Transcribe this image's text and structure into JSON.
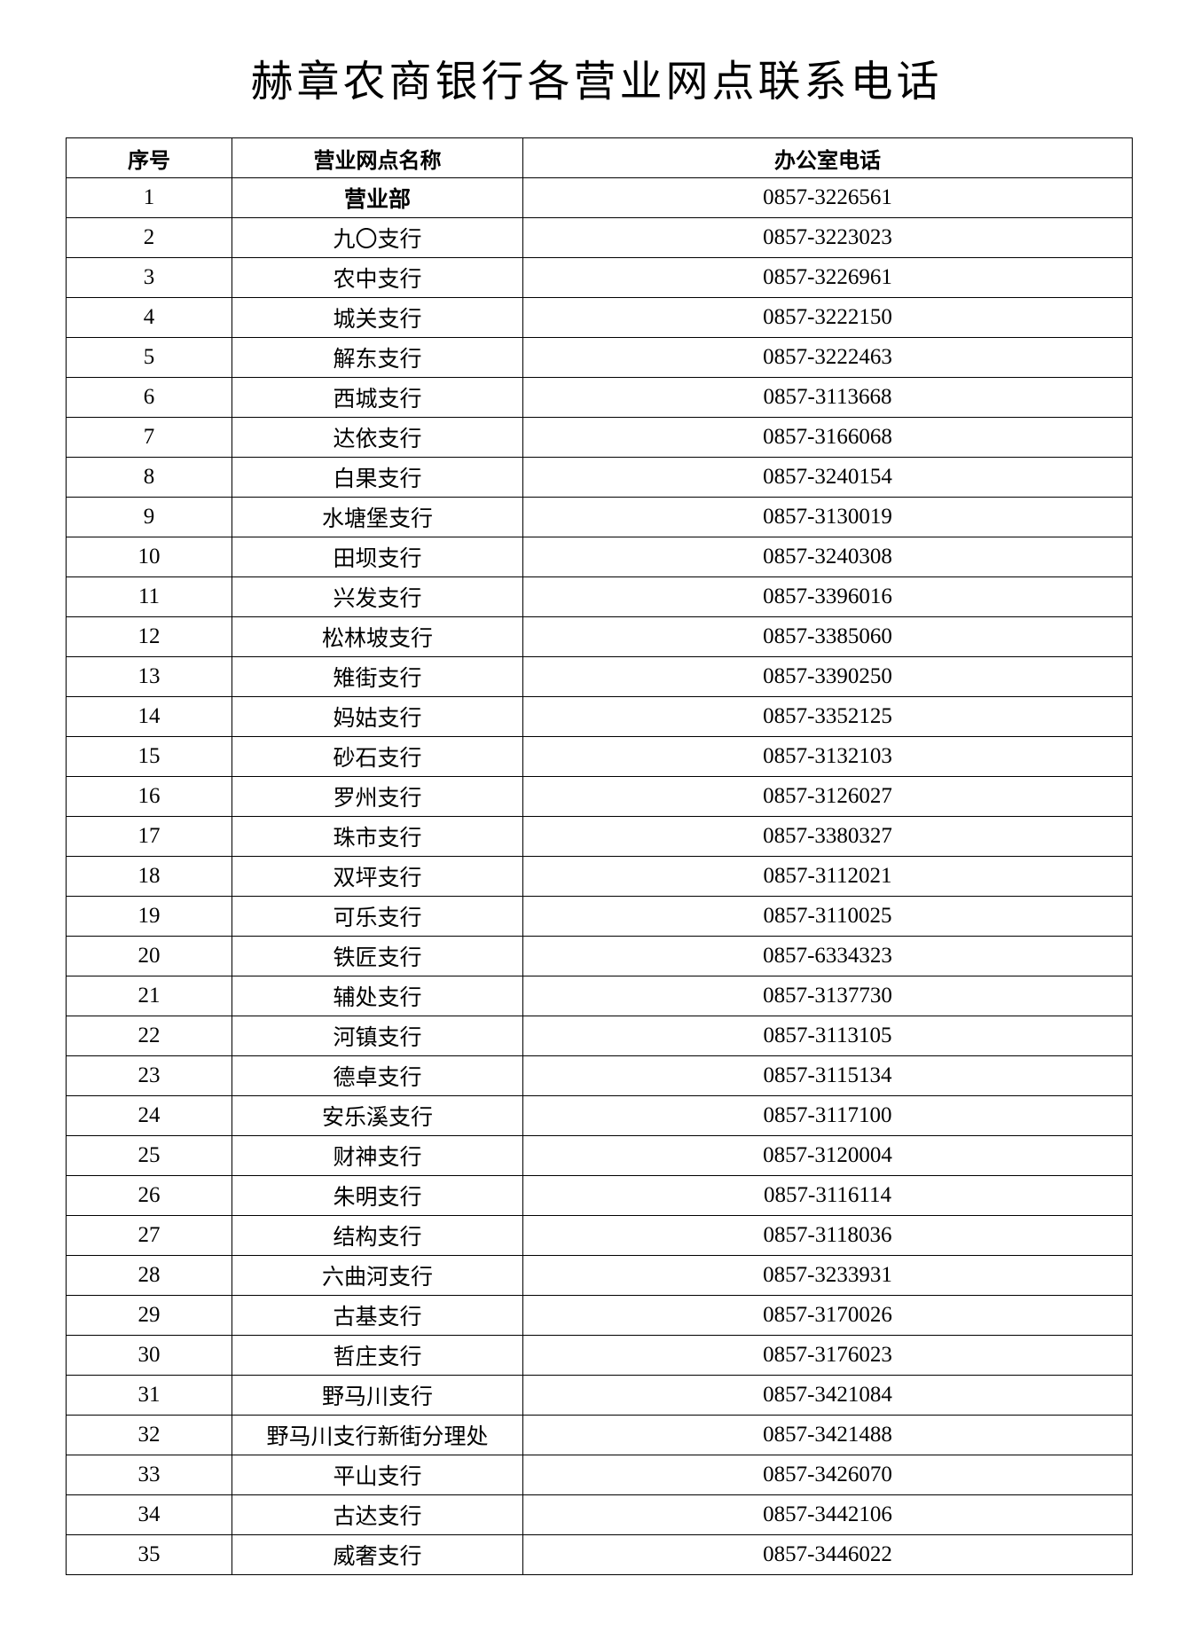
{
  "header": {
    "title": "赫章农商银行各营业网点联系电话"
  },
  "table": {
    "columns": [
      "序号",
      "营业网点名称",
      "办公室电话"
    ],
    "rows": [
      [
        "1",
        "营业部",
        "0857-3226561"
      ],
      [
        "2",
        "九〇支行",
        "0857-3223023"
      ],
      [
        "3",
        "农中支行",
        "0857-3226961"
      ],
      [
        "4",
        "城关支行",
        "0857-3222150"
      ],
      [
        "5",
        "解东支行",
        "0857-3222463"
      ],
      [
        "6",
        "西城支行",
        "0857-3113668"
      ],
      [
        "7",
        "达依支行",
        "0857-3166068"
      ],
      [
        "8",
        "白果支行",
        "0857-3240154"
      ],
      [
        "9",
        "水塘堡支行",
        "0857-3130019"
      ],
      [
        "10",
        "田坝支行",
        "0857-3240308"
      ],
      [
        "11",
        "兴发支行",
        "0857-3396016"
      ],
      [
        "12",
        "松林坡支行",
        "0857-3385060"
      ],
      [
        "13",
        "雉街支行",
        "0857-3390250"
      ],
      [
        "14",
        "妈姑支行",
        "0857-3352125"
      ],
      [
        "15",
        "砂石支行",
        "0857-3132103"
      ],
      [
        "16",
        "罗州支行",
        "0857-3126027"
      ],
      [
        "17",
        "珠市支行",
        "0857-3380327"
      ],
      [
        "18",
        "双坪支行",
        "0857-3112021"
      ],
      [
        "19",
        "可乐支行",
        "0857-3110025"
      ],
      [
        "20",
        "铁匠支行",
        "0857-6334323"
      ],
      [
        "21",
        "辅处支行",
        "0857-3137730"
      ],
      [
        "22",
        "河镇支行",
        "0857-3113105"
      ],
      [
        "23",
        "德卓支行",
        "0857-3115134"
      ],
      [
        "24",
        "安乐溪支行",
        "0857-3117100"
      ],
      [
        "25",
        "财神支行",
        "0857-3120004"
      ],
      [
        "26",
        "朱明支行",
        "0857-3116114"
      ],
      [
        "27",
        "结构支行",
        "0857-3118036"
      ],
      [
        "28",
        "六曲河支行",
        "0857-3233931"
      ],
      [
        "29",
        "古基支行",
        "0857-3170026"
      ],
      [
        "30",
        "哲庄支行",
        "0857-3176023"
      ],
      [
        "31",
        "野马川支行",
        "0857-3421084"
      ],
      [
        "32",
        "野马川支行新街分理处",
        "0857-3421488"
      ],
      [
        "33",
        "平山支行",
        "0857-3426070"
      ],
      [
        "34",
        "古达支行",
        "0857-3442106"
      ],
      [
        "35",
        "威奢支行",
        "0857-3446022"
      ]
    ]
  }
}
